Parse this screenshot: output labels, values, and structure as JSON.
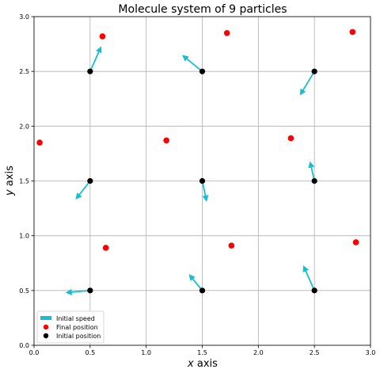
{
  "chart_data": {
    "type": "scatter",
    "title": "Molecule system of 9 particles",
    "xlabel_var": "x",
    "xlabel_rest": " axis",
    "ylabel_var": "y",
    "ylabel_rest": " axis",
    "xlim": [
      0.0,
      3.0
    ],
    "ylim": [
      0.0,
      3.0
    ],
    "xticks": [
      "0.0",
      "0.5",
      "1.0",
      "1.5",
      "2.0",
      "2.5",
      "3.0"
    ],
    "yticks": [
      "0.0",
      "0.5",
      "1.0",
      "1.5",
      "2.0",
      "2.5",
      "3.0"
    ],
    "grid": true,
    "legend_position": "lower-left",
    "legend": [
      {
        "label": "Initial speed",
        "marker": "arrow",
        "color": "#17becf"
      },
      {
        "label": "Final position",
        "marker": "dot",
        "color": "#ff0000"
      },
      {
        "label": "Initial position",
        "marker": "dot",
        "color": "#000000"
      }
    ],
    "initial_positions": [
      {
        "x": 0.5,
        "y": 0.5
      },
      {
        "x": 1.5,
        "y": 0.5
      },
      {
        "x": 2.5,
        "y": 0.5
      },
      {
        "x": 0.5,
        "y": 1.5
      },
      {
        "x": 1.5,
        "y": 1.5
      },
      {
        "x": 2.5,
        "y": 1.5
      },
      {
        "x": 0.5,
        "y": 2.5
      },
      {
        "x": 1.5,
        "y": 2.5
      },
      {
        "x": 2.5,
        "y": 2.5
      }
    ],
    "initial_speeds": [
      {
        "dx": -0.22,
        "dy": -0.02
      },
      {
        "dx": -0.12,
        "dy": 0.15
      },
      {
        "dx": -0.1,
        "dy": 0.23
      },
      {
        "dx": -0.13,
        "dy": -0.17
      },
      {
        "dx": 0.04,
        "dy": -0.19
      },
      {
        "dx": -0.04,
        "dy": 0.18
      },
      {
        "dx": 0.1,
        "dy": 0.23
      },
      {
        "dx": -0.18,
        "dy": 0.15
      },
      {
        "dx": -0.13,
        "dy": -0.22
      }
    ],
    "final_positions": [
      {
        "x": 0.05,
        "y": 1.85
      },
      {
        "x": 0.61,
        "y": 2.82
      },
      {
        "x": 1.72,
        "y": 2.85
      },
      {
        "x": 2.84,
        "y": 2.86
      },
      {
        "x": 1.18,
        "y": 1.87
      },
      {
        "x": 2.29,
        "y": 1.89
      },
      {
        "x": 0.64,
        "y": 0.89
      },
      {
        "x": 1.76,
        "y": 0.91
      },
      {
        "x": 2.87,
        "y": 0.94
      }
    ],
    "colors": {
      "arrow": "#17becf",
      "final": "#ff0000",
      "initial": "#000000",
      "grid": "#b0b0b0"
    }
  }
}
